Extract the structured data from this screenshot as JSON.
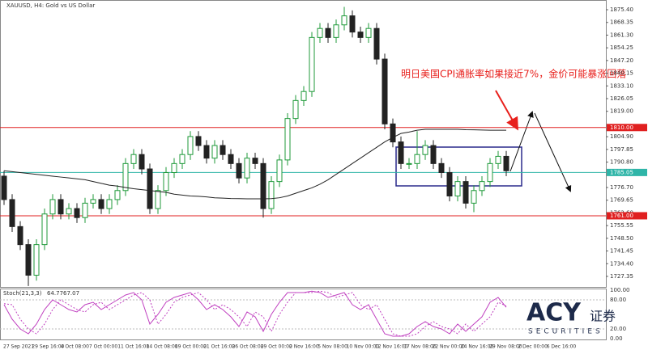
{
  "chart_data": {
    "type": "candlestick",
    "title": "XAUUSD, H4: Gold vs US Dollar",
    "annotation": "明日美国CPI通胀率如果接近7%，金价可能暴涨回落",
    "up_color": "#1f9a3a",
    "down_color": "#222222",
    "ma_color": "#222222",
    "ylim": [
      1721.5,
      1880.8
    ],
    "yticks": [
      {
        "value": 1875.4,
        "label": "1875.40"
      },
      {
        "value": 1868.35,
        "label": "1868.35"
      },
      {
        "value": 1861.3,
        "label": "1861.30"
      },
      {
        "value": 1854.25,
        "label": "1854.25"
      },
      {
        "value": 1847.2,
        "label": "1847.20"
      },
      {
        "value": 1840.15,
        "label": "1840.15"
      },
      {
        "value": 1833.1,
        "label": "1833.10"
      },
      {
        "value": 1826.05,
        "label": "1826.05"
      },
      {
        "value": 1819,
        "label": "1819.00"
      },
      {
        "value": 1804.9,
        "label": "1804.90"
      },
      {
        "value": 1797.85,
        "label": "1797.85"
      },
      {
        "value": 1790.8,
        "label": "1790.80"
      },
      {
        "value": 1776.7,
        "label": "1776.70"
      },
      {
        "value": 1769.65,
        "label": "1769.65"
      },
      {
        "value": 1762.6,
        "label": "1762.60"
      },
      {
        "value": 1755.55,
        "label": "1755.55"
      },
      {
        "value": 1748.5,
        "label": "1748.50"
      },
      {
        "value": 1741.45,
        "label": "1741.45"
      },
      {
        "value": 1734.4,
        "label": "1734.40"
      },
      {
        "value": 1727.35,
        "label": "1727.35"
      }
    ],
    "hlines": [
      {
        "value": 1810,
        "label": "1810.00",
        "color": "#e02020"
      },
      {
        "value": 1761,
        "label": "1761.00",
        "color": "#e02020"
      },
      {
        "value": 1785.05,
        "label": "1785.05",
        "color": "#2fb5a8"
      }
    ],
    "xlabels": [
      "27 Sep 2021",
      "29 Sep 16:00",
      "4 Oct 08:00",
      "7 Oct 00:00",
      "11 Oct 16:00",
      "14 Oct 08:00",
      "19 Oct 00:00",
      "21 Oct 16:00",
      "26 Oct 08:00",
      "29 Oct 00:00",
      "2 Nov 16:00",
      "5 Nov 08:00",
      "10 Nov 00:00",
      "12 Nov 16:00",
      "17 Nov 08:00",
      "22 Nov 00:00",
      "24 Nov 16:00",
      "29 Nov 08:00",
      "2 Dec 00:00",
      "6 Dec 16:00"
    ],
    "ohlc": [
      [
        1783,
        1786,
        1767,
        1770
      ],
      [
        1770,
        1773,
        1752,
        1755
      ],
      [
        1755,
        1758,
        1742,
        1745
      ],
      [
        1745,
        1748,
        1722,
        1728
      ],
      [
        1728,
        1748,
        1725,
        1745
      ],
      [
        1745,
        1765,
        1742,
        1762
      ],
      [
        1762,
        1773,
        1759,
        1770
      ],
      [
        1770,
        1773,
        1759,
        1762
      ],
      [
        1762,
        1768,
        1759,
        1765
      ],
      [
        1765,
        1768,
        1757,
        1760
      ],
      [
        1760,
        1771,
        1757,
        1768
      ],
      [
        1768,
        1773,
        1765,
        1770
      ],
      [
        1770,
        1773,
        1762,
        1765
      ],
      [
        1765,
        1773,
        1762,
        1770
      ],
      [
        1770,
        1778,
        1767,
        1775
      ],
      [
        1775,
        1793,
        1772,
        1790
      ],
      [
        1790,
        1798,
        1787,
        1795
      ],
      [
        1795,
        1798,
        1784,
        1787
      ],
      [
        1787,
        1790,
        1762,
        1765
      ],
      [
        1765,
        1778,
        1762,
        1775
      ],
      [
        1775,
        1788,
        1772,
        1785
      ],
      [
        1785,
        1793,
        1782,
        1790
      ],
      [
        1790,
        1798,
        1787,
        1795
      ],
      [
        1795,
        1808,
        1792,
        1805
      ],
      [
        1805,
        1808,
        1797,
        1800
      ],
      [
        1800,
        1803,
        1790,
        1793
      ],
      [
        1793,
        1803,
        1790,
        1800
      ],
      [
        1800,
        1803,
        1792,
        1795
      ],
      [
        1795,
        1798,
        1787,
        1790
      ],
      [
        1790,
        1793,
        1779,
        1782
      ],
      [
        1782,
        1796,
        1779,
        1793
      ],
      [
        1793,
        1796,
        1787,
        1790
      ],
      [
        1790,
        1793,
        1760,
        1765
      ],
      [
        1765,
        1783,
        1762,
        1780
      ],
      [
        1780,
        1795,
        1777,
        1792
      ],
      [
        1792,
        1818,
        1789,
        1815
      ],
      [
        1815,
        1828,
        1812,
        1825
      ],
      [
        1825,
        1833,
        1822,
        1830
      ],
      [
        1830,
        1863,
        1827,
        1860
      ],
      [
        1860,
        1868,
        1857,
        1865
      ],
      [
        1865,
        1868,
        1857,
        1860
      ],
      [
        1860,
        1870,
        1857,
        1867
      ],
      [
        1867,
        1877,
        1864,
        1872
      ],
      [
        1872,
        1875,
        1860,
        1863
      ],
      [
        1863,
        1866,
        1857,
        1860
      ],
      [
        1860,
        1868,
        1857,
        1865
      ],
      [
        1865,
        1868,
        1845,
        1848
      ],
      [
        1848,
        1851,
        1809,
        1812
      ],
      [
        1812,
        1815,
        1799,
        1802
      ],
      [
        1802,
        1805,
        1787,
        1790
      ],
      [
        1790,
        1793,
        1787,
        1790
      ],
      [
        1790,
        1808,
        1787,
        1795
      ],
      [
        1795,
        1803,
        1792,
        1800
      ],
      [
        1800,
        1803,
        1787,
        1790
      ],
      [
        1790,
        1793,
        1782,
        1785
      ],
      [
        1785,
        1788,
        1769,
        1772
      ],
      [
        1772,
        1783,
        1769,
        1780
      ],
      [
        1780,
        1783,
        1765,
        1768
      ],
      [
        1768,
        1778,
        1763,
        1775
      ],
      [
        1775,
        1783,
        1772,
        1780
      ],
      [
        1780,
        1793,
        1777,
        1790
      ],
      [
        1790,
        1797,
        1787,
        1794
      ],
      [
        1794,
        1797,
        1783,
        1786
      ]
    ],
    "ma": [
      1786,
      1785.5,
      1785,
      1784.5,
      1784,
      1783.5,
      1783,
      1782.5,
      1782,
      1781.5,
      1781,
      1780,
      1779,
      1778,
      1777.5,
      1776.7,
      1776,
      1775.5,
      1775,
      1774.5,
      1774,
      1773,
      1772.5,
      1772,
      1771.8,
      1771.5,
      1771,
      1770.8,
      1770.6,
      1770.5,
      1770.4,
      1770.4,
      1770.4,
      1770.5,
      1771,
      1772,
      1773.5,
      1775,
      1776.5,
      1778.5,
      1781,
      1784,
      1787,
      1790,
      1793,
      1796,
      1799,
      1802,
      1804.5,
      1806.7,
      1807.5,
      1808.5,
      1809,
      1809,
      1809,
      1809,
      1809,
      1808.8,
      1808.7,
      1808.6,
      1808.5,
      1808.5,
      1808.5
    ],
    "stoch": {
      "label": "Stoch(21,3,3)",
      "color": "#c040c0",
      "ylim": [
        0,
        100
      ],
      "yticks": [
        {
          "value": 100,
          "label": "100.00"
        },
        {
          "value": 80,
          "label": "80.00"
        },
        {
          "value": 20,
          "label": "20.00"
        },
        {
          "value": 0,
          "label": "0.00"
        }
      ],
      "main": [
        70,
        40,
        20,
        10,
        30,
        60,
        80,
        70,
        60,
        55,
        70,
        75,
        60,
        70,
        80,
        90,
        95,
        80,
        30,
        50,
        75,
        85,
        90,
        95,
        80,
        60,
        70,
        60,
        45,
        25,
        55,
        45,
        15,
        50,
        75,
        95,
        95,
        95,
        98,
        95,
        85,
        90,
        95,
        70,
        60,
        70,
        40,
        10,
        5,
        5,
        10,
        25,
        35,
        25,
        20,
        10,
        30,
        15,
        30,
        45,
        75,
        85,
        64.77
      ],
      "signal": [
        72,
        70,
        40,
        20,
        10,
        30,
        60,
        80,
        70,
        60,
        55,
        70,
        75,
        60,
        70,
        80,
        90,
        95,
        80,
        30,
        50,
        75,
        85,
        90,
        95,
        80,
        60,
        70,
        60,
        45,
        25,
        55,
        45,
        15,
        50,
        75,
        95,
        95,
        95,
        98,
        95,
        85,
        90,
        95,
        70,
        60,
        70,
        40,
        10,
        5,
        5,
        10,
        25,
        35,
        25,
        20,
        10,
        30,
        15,
        30,
        45,
        75,
        67.07
      ]
    },
    "logo": {
      "brand": "ACY",
      "cn": "证券",
      "sub": "SECURITIES"
    }
  }
}
